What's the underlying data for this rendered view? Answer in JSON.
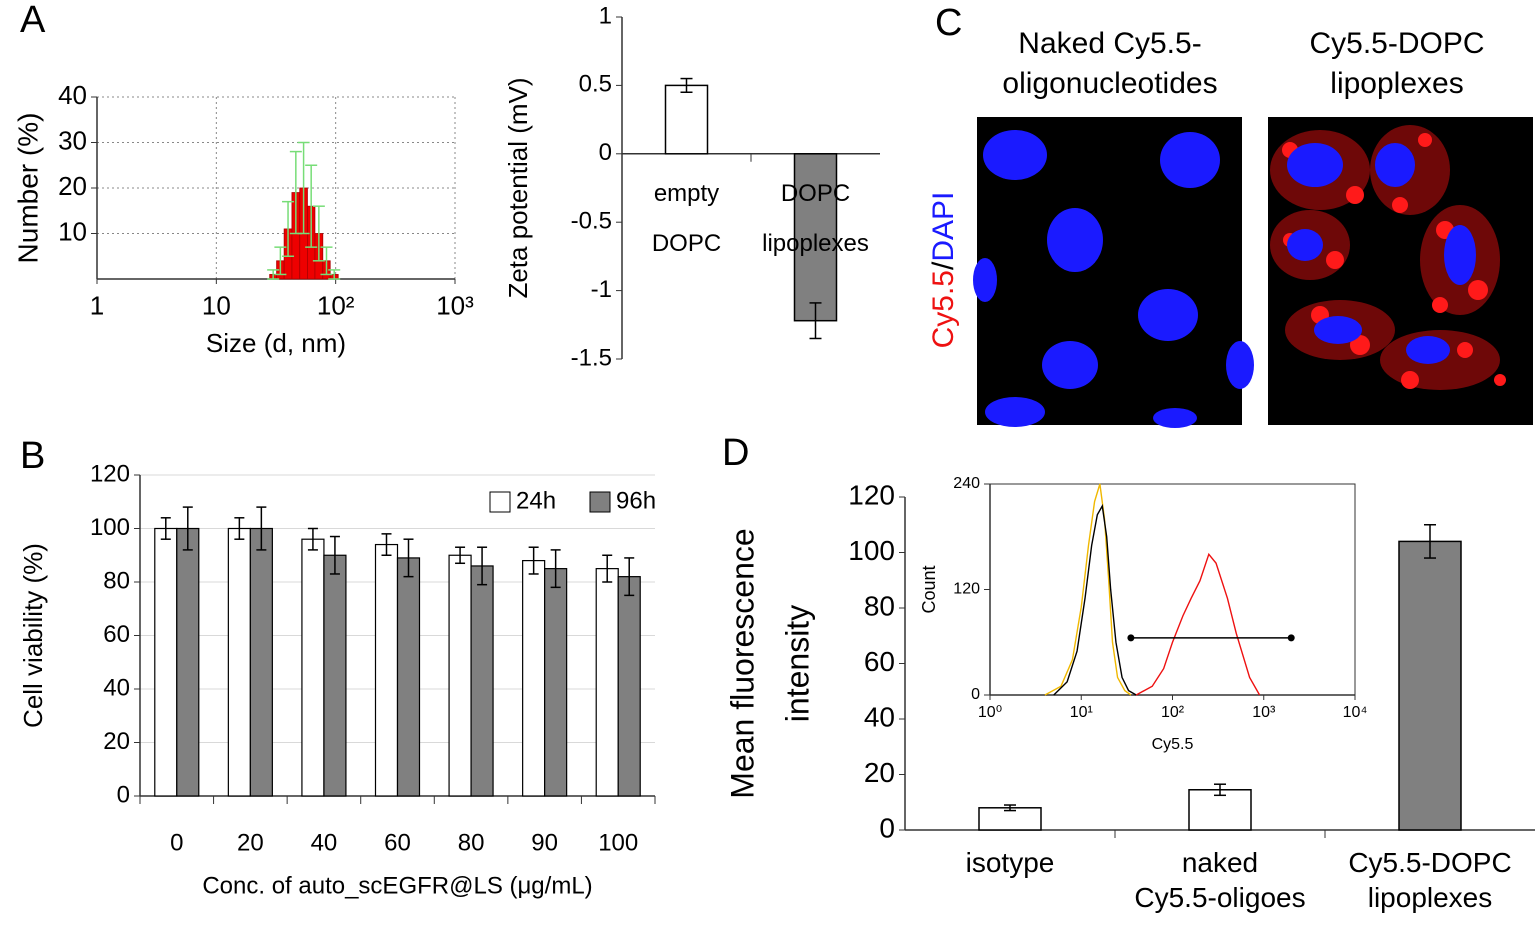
{
  "panel_labels": [
    "A",
    "B",
    "C",
    "D"
  ],
  "microscopy": {
    "titles": [
      "Naked Cy5.5-\noligonucleotides",
      "Cy5.5-DOPC\nlipoplexes"
    ],
    "stain_label": [
      "Cy5.5",
      "/",
      "DAPI"
    ],
    "stain_colors": [
      "#ee1111",
      "#000000",
      "#1a1aff"
    ]
  },
  "chart_data": [
    {
      "type": "histogram",
      "xscale": "log",
      "xlabel": "Size (d, nm)",
      "ylabel": "Number (%)",
      "bins": [
        28,
        32,
        37,
        43,
        50,
        58,
        67,
        78,
        90,
        105
      ],
      "values": [
        1,
        4,
        11,
        19,
        20,
        16,
        10,
        4,
        1
      ],
      "errors": [
        1,
        3,
        6,
        9,
        10,
        9,
        6,
        3,
        1
      ],
      "color": "#ee0000",
      "error_color": "#77dd77",
      "xlim": [
        1,
        1000
      ],
      "xticks": [
        1,
        10,
        {
          "value": 100,
          "label": "10²"
        },
        {
          "value": 1000,
          "label": "10³"
        }
      ],
      "ylim": [
        0,
        40
      ],
      "yticks": [
        10,
        20,
        30,
        40
      ],
      "grid": true
    },
    {
      "type": "bar",
      "ylabel": "Zeta potential (mV)",
      "categories": [
        "empty\nDOPC",
        "DOPC\nlipoplexes"
      ],
      "values": [
        0.5,
        -1.22
      ],
      "errors": [
        0.05,
        0.13
      ],
      "colors": [
        "#ffffff",
        "#808080"
      ],
      "ylim": [
        -1.5,
        1
      ],
      "yticks": [
        -1.5,
        -1,
        -0.5,
        0,
        0.5,
        1
      ],
      "grid": false
    },
    {
      "type": "grouped-bar",
      "xlabel": "Conc. of auto_scEGFR@LS (μg/mL)",
      "ylabel": "Cell viability (%)",
      "categories": [
        "0",
        "20",
        "40",
        "60",
        "80",
        "90",
        "100"
      ],
      "series": [
        {
          "name": "24h",
          "color": "#ffffff",
          "values": [
            100,
            100,
            96,
            94,
            90,
            88,
            85
          ],
          "errors": [
            4,
            4,
            4,
            4,
            3,
            5,
            5
          ]
        },
        {
          "name": "96h",
          "color": "#808080",
          "values": [
            100,
            100,
            90,
            89,
            86,
            85,
            82
          ],
          "errors": [
            8,
            8,
            7,
            7,
            7,
            7,
            7
          ]
        }
      ],
      "ylim": [
        0,
        120
      ],
      "yticks": [
        0,
        20,
        40,
        60,
        80,
        100,
        120
      ],
      "grid": true,
      "legend": "top-right"
    },
    {
      "type": "bar",
      "ylabel": [
        "Mean fluorescence",
        "intensity"
      ],
      "categories": [
        "isotype",
        "naked\nCy5.5-oligoes",
        "Cy5.5-DOPC\nlipoplexes"
      ],
      "category_colors": [
        "#000000",
        "#e6c200",
        "#ee1111"
      ],
      "values": [
        8,
        14.5,
        104
      ],
      "errors": [
        1,
        2,
        6
      ],
      "colors": [
        "#ffffff",
        "#ffffff",
        "#808080"
      ],
      "ylim": [
        0,
        120
      ],
      "yticks": [
        0,
        20,
        40,
        60,
        80,
        100,
        120
      ],
      "grid": false
    },
    {
      "type": "line",
      "xscale": "log",
      "xlabel": "Cy5.5",
      "ylabel": "Count",
      "series": [
        {
          "color": "#f0b800",
          "x": [
            4,
            6,
            8,
            10,
            12,
            14,
            16,
            18,
            20,
            22,
            25,
            30,
            35
          ],
          "values": [
            0,
            10,
            40,
            100,
            170,
            220,
            240,
            200,
            130,
            60,
            20,
            5,
            0
          ]
        },
        {
          "color": "#000000",
          "x": [
            5,
            7,
            9,
            11,
            13,
            15,
            17,
            19,
            21,
            24,
            28,
            33,
            40
          ],
          "values": [
            0,
            15,
            50,
            110,
            170,
            205,
            215,
            180,
            120,
            60,
            20,
            5,
            0
          ]
        },
        {
          "color": "#ee1111",
          "x": [
            40,
            60,
            80,
            100,
            130,
            160,
            200,
            250,
            300,
            400,
            500,
            700,
            900
          ],
          "values": [
            0,
            10,
            30,
            60,
            90,
            110,
            130,
            160,
            150,
            110,
            70,
            20,
            0
          ]
        }
      ],
      "gate": {
        "x": [
          35,
          2000
        ],
        "y": [
          65,
          65
        ]
      },
      "xlim": [
        1,
        10000
      ],
      "xticks": [
        {
          "value": 1,
          "label": "10⁰"
        },
        {
          "value": 10,
          "label": "10¹"
        },
        {
          "value": 100,
          "label": "10²"
        },
        {
          "value": 1000,
          "label": "10³"
        },
        {
          "value": 10000,
          "label": "10⁴"
        }
      ],
      "ylim": [
        0,
        240
      ],
      "yticks": [
        0,
        120,
        240
      ],
      "grid": false
    }
  ]
}
